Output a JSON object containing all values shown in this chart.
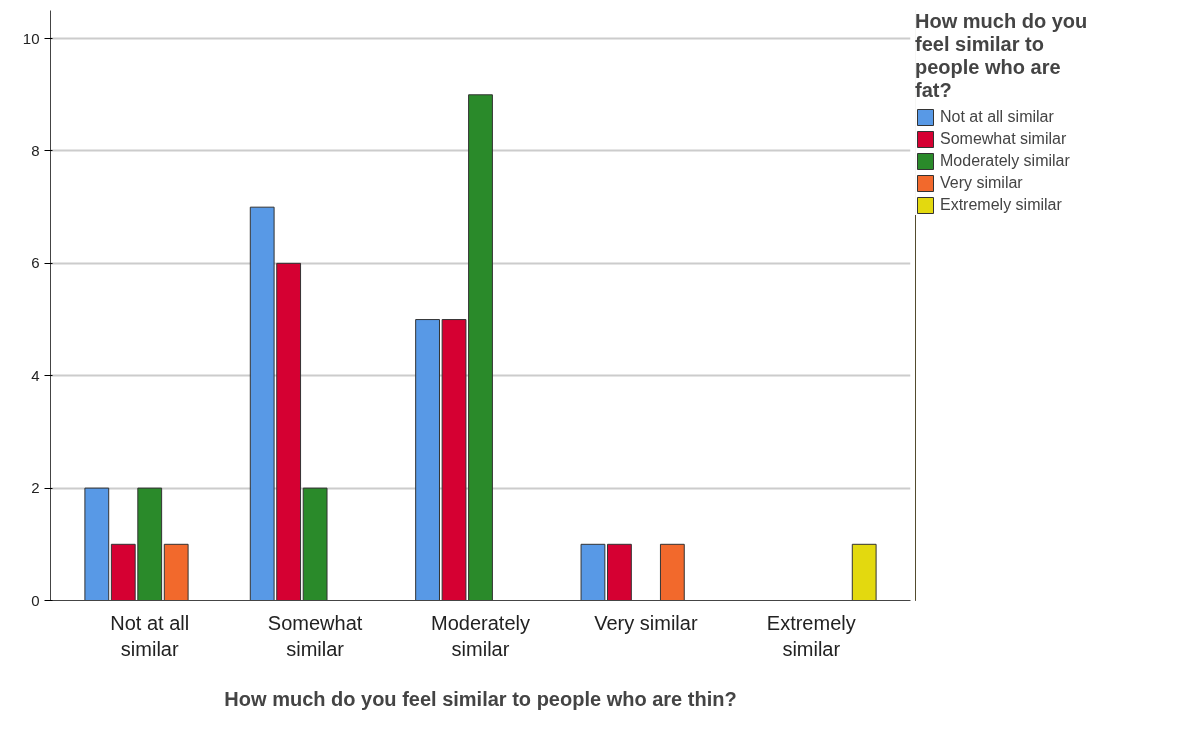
{
  "chart_data": {
    "type": "bar",
    "xlabel": "How much do you feel similar to people who are thin?",
    "legend_title": "How much do you feel similar to people who are fat?",
    "categories": [
      "Not at all similar",
      "Somewhat similar",
      "Moderately similar",
      "Very similar",
      "Extremely similar"
    ],
    "series": [
      {
        "name": "Not at all similar",
        "color": "#5899e6",
        "values": [
          2,
          7,
          5,
          1,
          null
        ]
      },
      {
        "name": "Somewhat similar",
        "color": "#d50032",
        "values": [
          1,
          6,
          5,
          1,
          null
        ]
      },
      {
        "name": "Moderately similar",
        "color": "#2a8a2a",
        "values": [
          2,
          2,
          9,
          null,
          null
        ]
      },
      {
        "name": "Very similar",
        "color": "#f2692c",
        "values": [
          1,
          null,
          null,
          1,
          null
        ]
      },
      {
        "name": "Extremely similar",
        "color": "#e3d90f",
        "values": [
          null,
          null,
          null,
          null,
          1
        ]
      }
    ],
    "ylim": [
      0,
      10.5
    ],
    "yticks": [
      0,
      2,
      4,
      6,
      8,
      10
    ],
    "grid": "y",
    "legend": "top right"
  }
}
